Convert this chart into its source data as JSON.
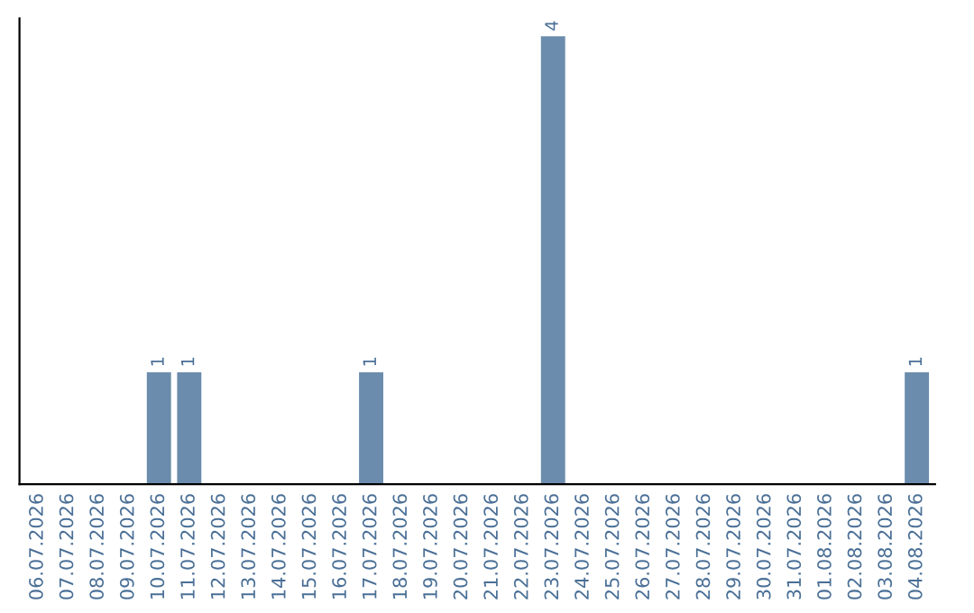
{
  "chart_data": {
    "type": "bar",
    "categories": [
      "06.07.2026",
      "07.07.2026",
      "08.07.2026",
      "09.07.2026",
      "10.07.2026",
      "11.07.2026",
      "12.07.2026",
      "13.07.2026",
      "14.07.2026",
      "15.07.2026",
      "16.07.2026",
      "17.07.2026",
      "18.07.2026",
      "19.07.2026",
      "20.07.2026",
      "21.07.2026",
      "22.07.2026",
      "23.07.2026",
      "24.07.2026",
      "25.07.2026",
      "26.07.2026",
      "27.07.2026",
      "28.07.2026",
      "29.07.2026",
      "30.07.2026",
      "31.07.2026",
      "01.08.2026",
      "02.08.2026",
      "03.08.2026",
      "04.08.2026"
    ],
    "values": [
      0,
      0,
      0,
      0,
      1,
      1,
      0,
      0,
      0,
      0,
      0,
      1,
      0,
      0,
      0,
      0,
      0,
      4,
      0,
      0,
      0,
      0,
      0,
      0,
      0,
      0,
      0,
      0,
      0,
      1
    ],
    "value_labels": [
      null,
      null,
      null,
      null,
      "1",
      "1",
      null,
      null,
      null,
      null,
      null,
      "1",
      null,
      null,
      null,
      null,
      null,
      "4",
      null,
      null,
      null,
      null,
      null,
      null,
      null,
      null,
      null,
      null,
      null,
      "1"
    ],
    "color": "#6b8cac",
    "tick_labels": "x",
    "grid": false,
    "legend": false
  }
}
